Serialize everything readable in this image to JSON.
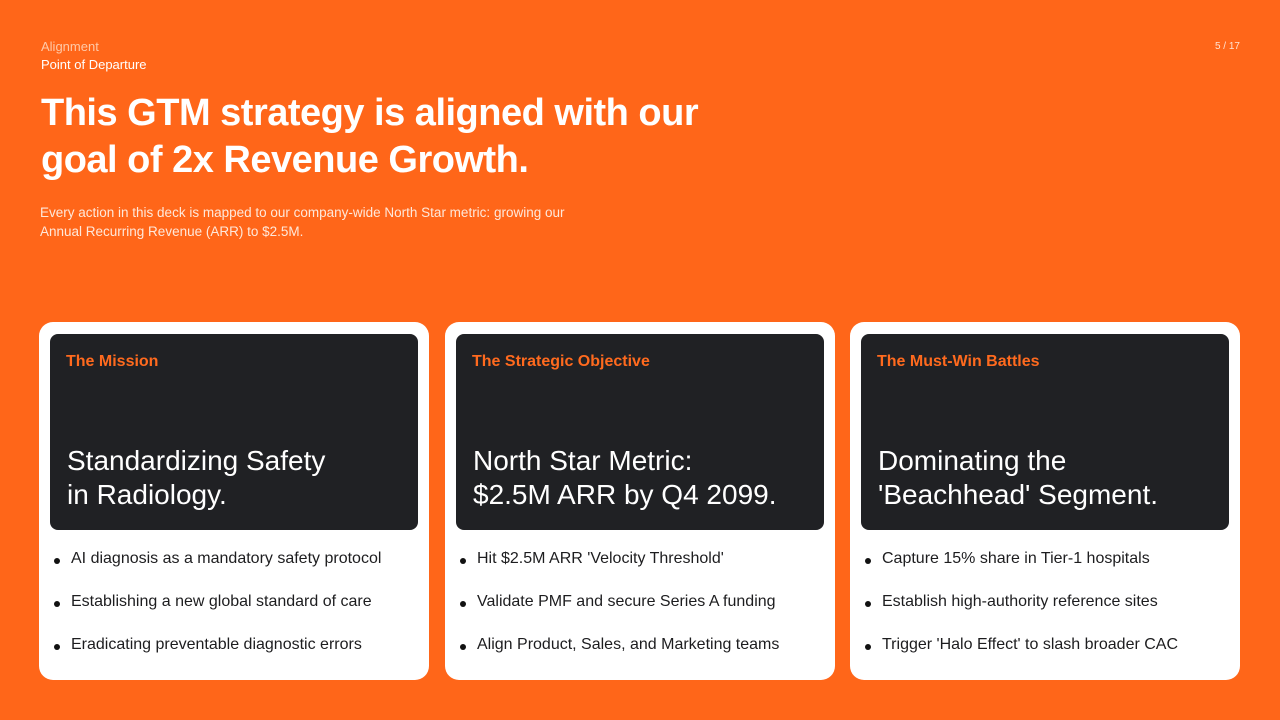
{
  "header": {
    "kicker": "Alignment",
    "section": "Point of Departure",
    "page": "5 / 17"
  },
  "title": "This GTM strategy is aligned with our goal of 2x Revenue Growth.",
  "subtitle": "Every action in this deck is mapped to our company-wide North Star metric: growing our Annual Recurring Revenue (ARR) to $2.5M.",
  "colors": {
    "background": "#ff6619",
    "accent": "#ff6a1e",
    "panel": "#202124"
  },
  "cards": [
    {
      "label": "The Mission",
      "headline_1": "Standardizing Safety",
      "headline_2": "in Radiology.",
      "bullets": [
        "AI diagnosis as a mandatory safety protocol",
        "Establishing a new global standard of care",
        "Eradicating preventable diagnostic errors"
      ]
    },
    {
      "label": "The Strategic Objective",
      "headline_1": "North Star Metric:",
      "headline_2": "$2.5M ARR by Q4 2099.",
      "bullets": [
        "Hit $2.5M ARR 'Velocity Threshold'",
        "Validate PMF and secure Series A funding",
        "Align Product, Sales, and Marketing teams"
      ]
    },
    {
      "label": "The Must-Win Battles",
      "headline_1": "Dominating the",
      "headline_2": "'Beachhead' Segment.",
      "bullets": [
        "Capture 15% share in Tier-1 hospitals",
        "Establish high-authority reference sites",
        "Trigger 'Halo Effect' to slash broader CAC"
      ]
    }
  ]
}
